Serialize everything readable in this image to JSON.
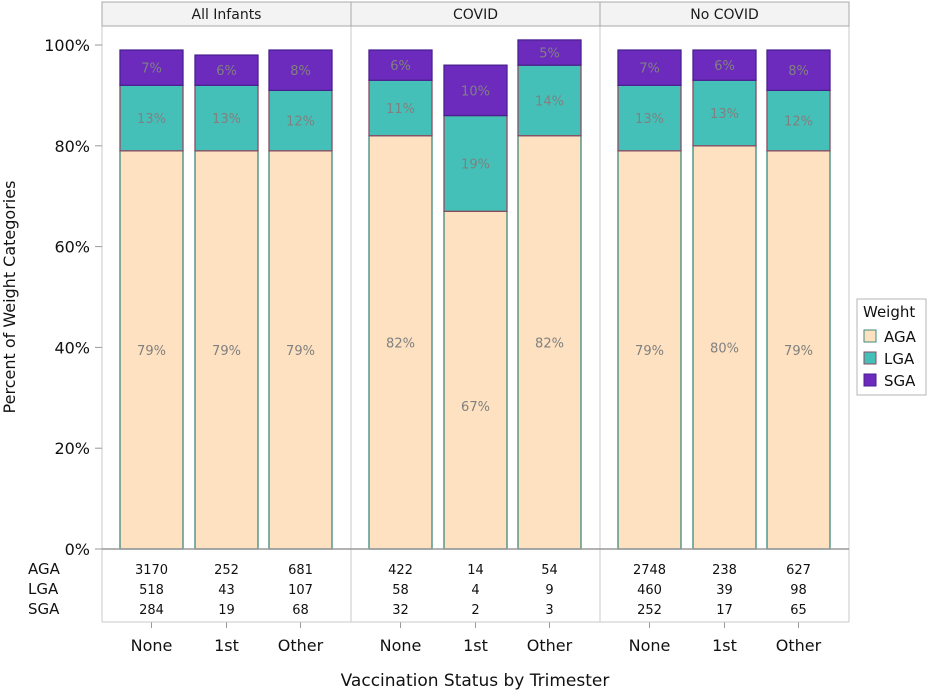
{
  "chart_data": {
    "type": "bar",
    "stacked": true,
    "ylabel": "Percent of Weight Categories",
    "xlabel": "Vaccination Status by Trimester",
    "ylim": [
      0,
      100
    ],
    "yticks": [
      "0%",
      "20%",
      "40%",
      "60%",
      "80%",
      "100%"
    ],
    "categories": [
      "None",
      "1st",
      "Other"
    ],
    "legend": {
      "title": "Weight",
      "position": "right",
      "items": [
        {
          "name": "AGA",
          "color": "#fde1c0"
        },
        {
          "name": "LGA",
          "color": "#45c0b8"
        },
        {
          "name": "SGA",
          "color": "#6c2bbd"
        }
      ]
    },
    "panels": [
      {
        "title": "All Infants",
        "bars": [
          {
            "category": "None",
            "AGA": 79,
            "LGA": 13,
            "SGA": 7
          },
          {
            "category": "1st",
            "AGA": 79,
            "LGA": 13,
            "SGA": 6
          },
          {
            "category": "Other",
            "AGA": 79,
            "LGA": 12,
            "SGA": 8
          }
        ],
        "counts": {
          "AGA": [
            "3170",
            "252",
            "681"
          ],
          "LGA": [
            "518",
            "43",
            "107"
          ],
          "SGA": [
            "284",
            "19",
            "68"
          ]
        }
      },
      {
        "title": "COVID",
        "bars": [
          {
            "category": "None",
            "AGA": 82,
            "LGA": 11,
            "SGA": 6
          },
          {
            "category": "1st",
            "AGA": 67,
            "LGA": 19,
            "SGA": 10
          },
          {
            "category": "Other",
            "AGA": 82,
            "LGA": 14,
            "SGA": 5
          }
        ],
        "counts": {
          "AGA": [
            "422",
            "14",
            "54"
          ],
          "LGA": [
            "58",
            "4",
            "9"
          ],
          "SGA": [
            "32",
            "2",
            "3"
          ]
        }
      },
      {
        "title": "No COVID",
        "bars": [
          {
            "category": "None",
            "AGA": 79,
            "LGA": 13,
            "SGA": 7
          },
          {
            "category": "1st",
            "AGA": 80,
            "LGA": 13,
            "SGA": 6
          },
          {
            "category": "Other",
            "AGA": 79,
            "LGA": 12,
            "SGA": 8
          }
        ],
        "counts": {
          "AGA": [
            "2748",
            "238",
            "627"
          ],
          "LGA": [
            "460",
            "39",
            "98"
          ],
          "SGA": [
            "252",
            "17",
            "65"
          ]
        }
      }
    ]
  }
}
